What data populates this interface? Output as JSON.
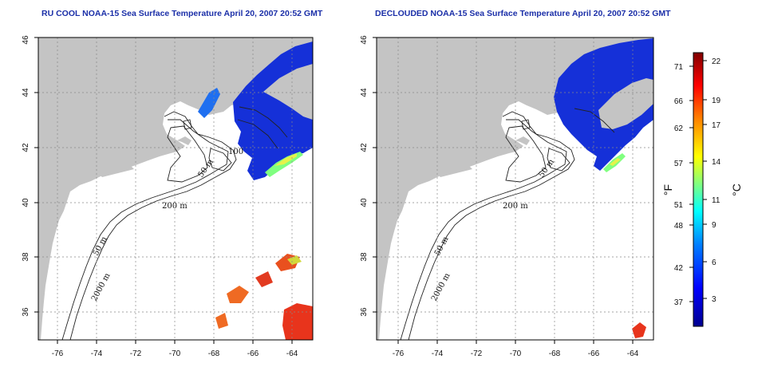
{
  "left_panel": {
    "title": "RU COOL NOAA-15 Sea Surface Temperature April 20, 2007 20:52 GMT",
    "contour_labels": [
      "100",
      "50 m",
      "200 m",
      "50 m",
      "2000 m"
    ]
  },
  "right_panel": {
    "title": "DECLOUDED NOAA-15 Sea Surface Temperature April 20, 2007 20:52 GMT",
    "contour_labels": [
      "50 m",
      "200 m",
      "50 m",
      "2000 m"
    ]
  },
  "axes": {
    "x_ticks": [
      "-76",
      "-74",
      "-72",
      "-70",
      "-68",
      "-66",
      "-64"
    ],
    "y_ticks": [
      "36",
      "38",
      "40",
      "42",
      "44",
      "46"
    ],
    "lon_range": [
      -77,
      -62.8
    ],
    "lat_range": [
      35,
      46
    ],
    "grid": true
  },
  "colorbar": {
    "fahrenheit_ticks": [
      "71",
      "66",
      "62",
      "57",
      "51",
      "48",
      "42",
      "37"
    ],
    "celsius_ticks": [
      "22",
      "19",
      "17",
      "14",
      "11",
      "9",
      "6",
      "3"
    ],
    "fahrenheit_unit": "°F",
    "celsius_unit": "°C",
    "colors": [
      "#00008f",
      "#0000ff",
      "#0080ff",
      "#00ffff",
      "#80ff80",
      "#ffff00",
      "#ff8000",
      "#ff0000",
      "#800000"
    ]
  },
  "colors": {
    "land": "#c4c4c4",
    "ocean": "#ffffff",
    "cold_water": "#1530d8",
    "title": "#1b2fa8"
  }
}
